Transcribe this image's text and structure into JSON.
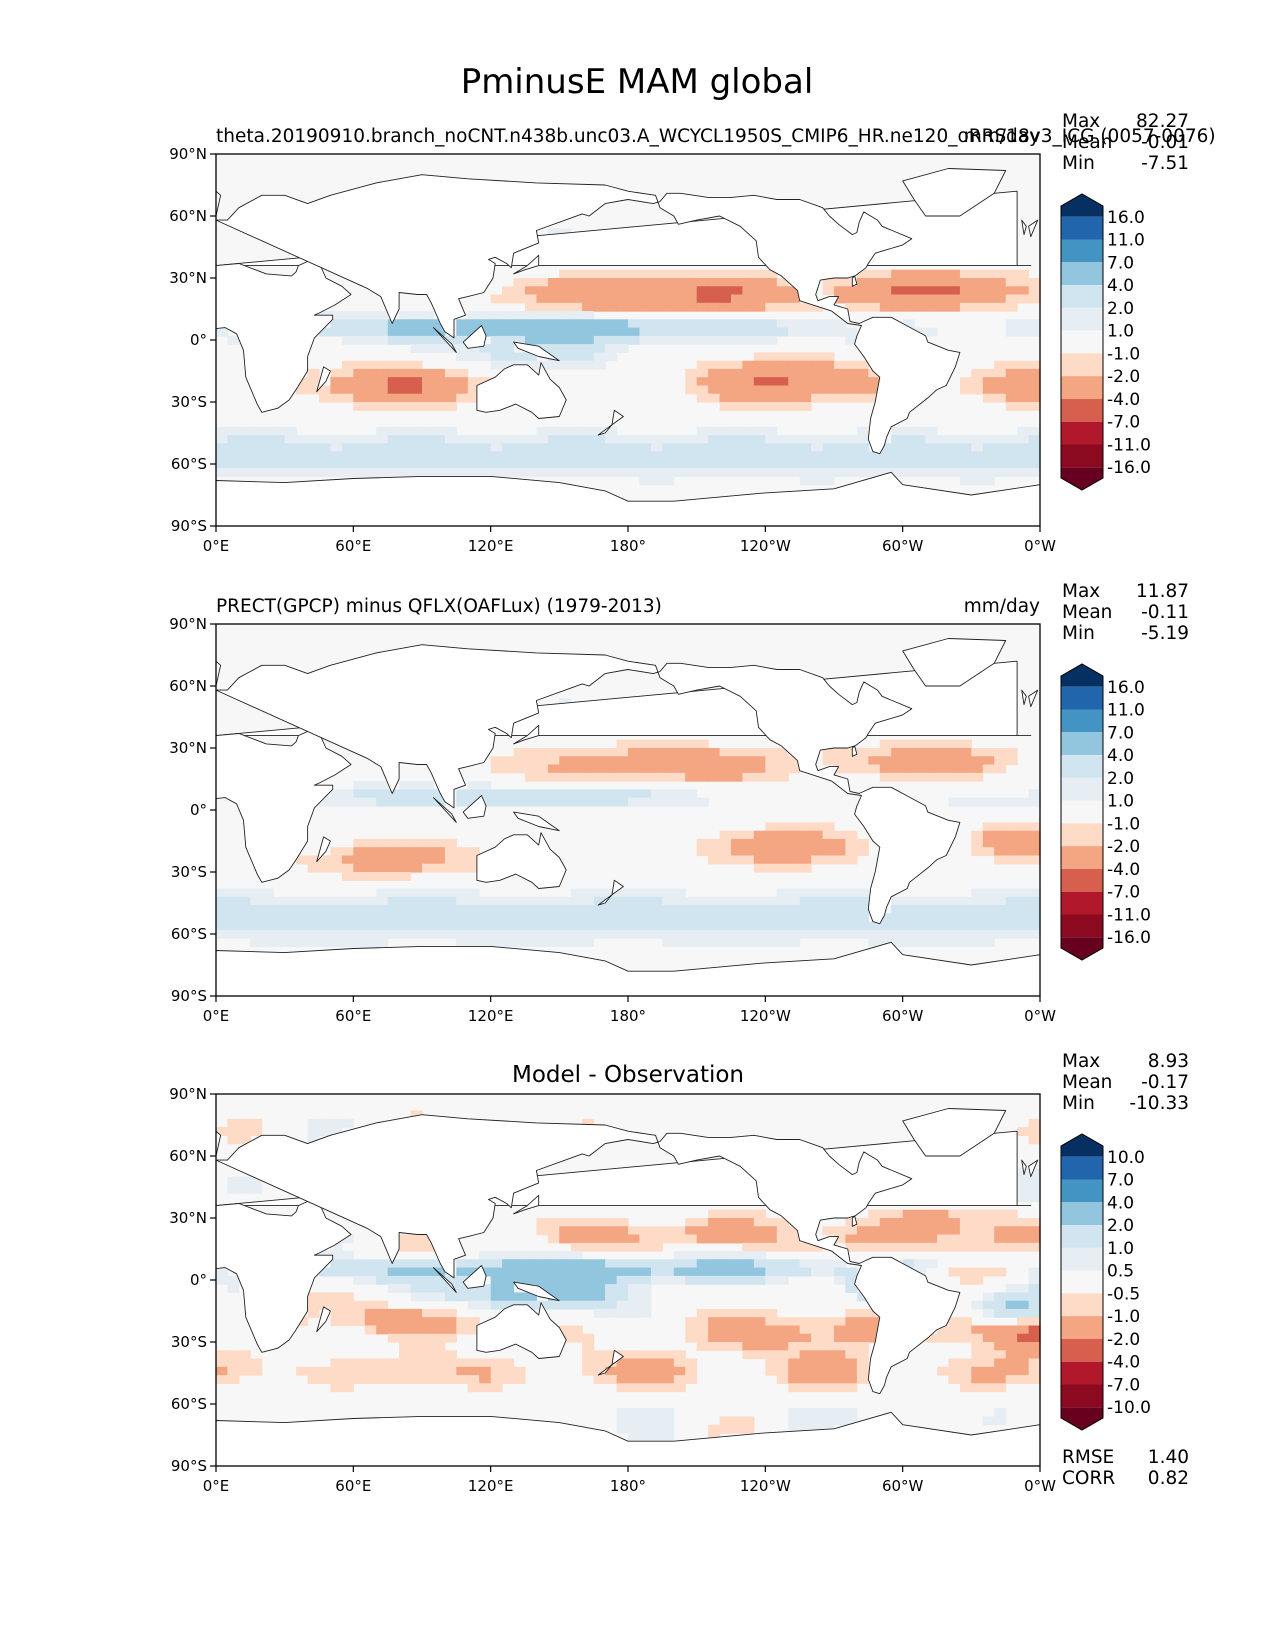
{
  "figure_title": "PminusE MAM global",
  "chart_data": [
    {
      "type": "heatmap",
      "title": "theta.20190910.branch_noCNT.n438b.unc03.A_WCYCL1950S_CMIP6_HR.ne120_oRRS18v3_ICG (0057-0076)",
      "units": "mm/day",
      "stats": [
        {
          "label": "Max",
          "value": "82.27"
        },
        {
          "label": "Mean",
          "value": "-0.01"
        },
        {
          "label": "Min",
          "value": "-7.51"
        }
      ],
      "colorbar_levels": [
        "16.0",
        "11.0",
        "7.0",
        "4.0",
        "2.0",
        "1.0",
        "-1.0",
        "-2.0",
        "-4.0",
        "-7.0",
        "-11.0",
        "-16.0"
      ],
      "colorbar_colors": [
        "#053061",
        "#2166ac",
        "#4393c3",
        "#92c5de",
        "#d1e5f0",
        "#e6eef4",
        "#f7f7f7",
        "#fddbc7",
        "#f4a582",
        "#d6604d",
        "#b2182b",
        "#8b0a1f",
        "#67001f"
      ],
      "xticks": [
        "0°E",
        "60°E",
        "120°E",
        "180°",
        "120°W",
        "60°W",
        "0°W"
      ],
      "yticks": [
        "90°N",
        "60°N",
        "30°N",
        "0°",
        "30°S",
        "60°S",
        "90°S"
      ],
      "xlim": [
        0,
        360
      ],
      "ylim": [
        -90,
        90
      ]
    },
    {
      "type": "heatmap",
      "title": "PRECT(GPCP) minus QFLX(OAFLux) (1979-2013)",
      "units": "mm/day",
      "stats": [
        {
          "label": "Max",
          "value": "11.87"
        },
        {
          "label": "Mean",
          "value": "-0.11"
        },
        {
          "label": "Min",
          "value": "-5.19"
        }
      ],
      "colorbar_levels": [
        "16.0",
        "11.0",
        "7.0",
        "4.0",
        "2.0",
        "1.0",
        "-1.0",
        "-2.0",
        "-4.0",
        "-7.0",
        "-11.0",
        "-16.0"
      ],
      "colorbar_colors": [
        "#053061",
        "#2166ac",
        "#4393c3",
        "#92c5de",
        "#d1e5f0",
        "#e6eef4",
        "#f7f7f7",
        "#fddbc7",
        "#f4a582",
        "#d6604d",
        "#b2182b",
        "#8b0a1f",
        "#67001f"
      ],
      "xticks": [
        "0°E",
        "60°E",
        "120°E",
        "180°",
        "120°W",
        "60°W",
        "0°W"
      ],
      "yticks": [
        "90°N",
        "60°N",
        "30°N",
        "0°",
        "30°S",
        "60°S",
        "90°S"
      ],
      "xlim": [
        0,
        360
      ],
      "ylim": [
        -90,
        90
      ]
    },
    {
      "type": "heatmap",
      "title": "Model - Observation",
      "units": "",
      "stats": [
        {
          "label": "Max",
          "value": "8.93"
        },
        {
          "label": "Mean",
          "value": "-0.17"
        },
        {
          "label": "Min",
          "value": "-10.33"
        }
      ],
      "extra_stats": [
        {
          "label": "RMSE",
          "value": "1.40"
        },
        {
          "label": "CORR",
          "value": "0.82"
        }
      ],
      "colorbar_levels": [
        "10.0",
        "7.0",
        "4.0",
        "2.0",
        "1.0",
        "0.5",
        "-0.5",
        "-1.0",
        "-2.0",
        "-4.0",
        "-7.0",
        "-10.0"
      ],
      "colorbar_colors": [
        "#053061",
        "#2166ac",
        "#4393c3",
        "#92c5de",
        "#d1e5f0",
        "#e6eef4",
        "#f7f7f7",
        "#fddbc7",
        "#f4a582",
        "#d6604d",
        "#b2182b",
        "#8b0a1f",
        "#67001f"
      ],
      "xticks": [
        "0°E",
        "60°E",
        "120°E",
        "180°",
        "120°W",
        "60°W",
        "0°W"
      ],
      "yticks": [
        "90°N",
        "60°N",
        "30°N",
        "0°",
        "30°S",
        "60°S",
        "90°S"
      ],
      "xlim": [
        0,
        360
      ],
      "ylim": [
        -90,
        90
      ]
    }
  ]
}
